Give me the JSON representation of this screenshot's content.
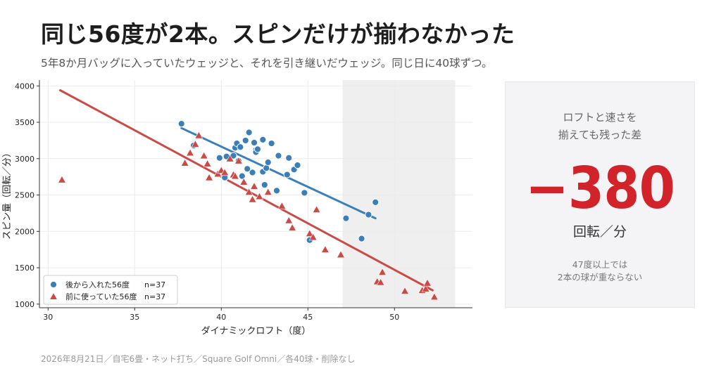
{
  "title": "同じ56度が2本。スピンだけが揃わなかった",
  "subtitle": "5年8か月バッグに入っていたウェッジと、それを引き継いだウェッジ。同じ日に40球ずつ。",
  "panel": {
    "heading_line1": "ロフトと速さを",
    "heading_line2": "揃えても残った差",
    "value": "−380",
    "unit": "回転／分",
    "note_line1": "47度以上では",
    "note_line2": "2本の球が重ならない",
    "value_color": "#d2232a"
  },
  "footer": "2026年8月21日／自宅6畳・ネット打ち／Square Golf Omni／各40球・削除なし",
  "chart_data": {
    "type": "scatter",
    "xlabel": "ダイナミックロフト（度）",
    "ylabel": "スピン量（回転／分）",
    "xlim": [
      29.5,
      54.5
    ],
    "ylim": [
      950,
      4080
    ],
    "xticks": [
      30,
      35,
      40,
      45,
      50
    ],
    "yticks": [
      1000,
      1500,
      2000,
      2500,
      3000,
      3500,
      4000
    ],
    "grid": true,
    "legend_position": "lower-left",
    "shaded_region": [
      47,
      53.5
    ],
    "series": [
      {
        "name": "後から入れた56度",
        "n_label": "n=37",
        "marker": "circle",
        "color": "#3a7fb8",
        "fit": [
          [
            37.7,
            3420
          ],
          [
            48.9,
            2180
          ]
        ],
        "points": [
          [
            37.7,
            3480
          ],
          [
            38.4,
            3180
          ],
          [
            39.9,
            3010
          ],
          [
            40.2,
            2740
          ],
          [
            40.3,
            3030
          ],
          [
            40.7,
            3040
          ],
          [
            40.8,
            3150
          ],
          [
            40.9,
            3210
          ],
          [
            41.1,
            3160
          ],
          [
            41.2,
            2760
          ],
          [
            41.4,
            3250
          ],
          [
            41.5,
            2860
          ],
          [
            41.6,
            3360
          ],
          [
            41.8,
            2810
          ],
          [
            41.9,
            3220
          ],
          [
            42.0,
            3120
          ],
          [
            42.0,
            3090
          ],
          [
            42.1,
            3130
          ],
          [
            42.4,
            3260
          ],
          [
            42.4,
            2820
          ],
          [
            42.5,
            2640
          ],
          [
            42.6,
            2870
          ],
          [
            42.7,
            2950
          ],
          [
            42.9,
            3210
          ],
          [
            43.2,
            2560
          ],
          [
            43.3,
            3040
          ],
          [
            43.8,
            2780
          ],
          [
            43.9,
            3010
          ],
          [
            44.2,
            2850
          ],
          [
            44.4,
            2910
          ],
          [
            44.8,
            2530
          ],
          [
            45.1,
            1880
          ],
          [
            47.2,
            2180
          ],
          [
            48.1,
            1900
          ],
          [
            48.5,
            2230
          ],
          [
            48.9,
            2400
          ],
          [
            41.0,
            2970
          ]
        ]
      },
      {
        "name": "前に使っていた56度",
        "n_label": "n=37",
        "marker": "triangle",
        "color": "#cc4a46",
        "fit": [
          [
            30.7,
            3940
          ],
          [
            52.2,
            1190
          ]
        ],
        "points": [
          [
            30.8,
            2710
          ],
          [
            37.9,
            2940
          ],
          [
            38.2,
            3080
          ],
          [
            38.5,
            3200
          ],
          [
            38.7,
            3320
          ],
          [
            39.0,
            3040
          ],
          [
            39.2,
            2930
          ],
          [
            39.3,
            2740
          ],
          [
            39.8,
            2790
          ],
          [
            40.0,
            2840
          ],
          [
            40.2,
            2810
          ],
          [
            40.5,
            3000
          ],
          [
            40.7,
            2780
          ],
          [
            40.8,
            2760
          ],
          [
            41.0,
            2970
          ],
          [
            41.3,
            2680
          ],
          [
            41.6,
            2540
          ],
          [
            41.8,
            2440
          ],
          [
            41.9,
            2620
          ],
          [
            42.2,
            2480
          ],
          [
            42.7,
            2540
          ],
          [
            43.5,
            2350
          ],
          [
            43.9,
            2150
          ],
          [
            45.1,
            1970
          ],
          [
            45.3,
            1920
          ],
          [
            45.5,
            2300
          ],
          [
            46.9,
            1680
          ],
          [
            49.0,
            1310
          ],
          [
            49.2,
            1300
          ],
          [
            49.3,
            1440
          ],
          [
            50.6,
            1180
          ],
          [
            51.6,
            1190
          ],
          [
            51.8,
            1210
          ],
          [
            51.9,
            1290
          ],
          [
            52.3,
            1100
          ],
          [
            44.1,
            2050
          ],
          [
            46.0,
            1750
          ]
        ]
      }
    ]
  }
}
